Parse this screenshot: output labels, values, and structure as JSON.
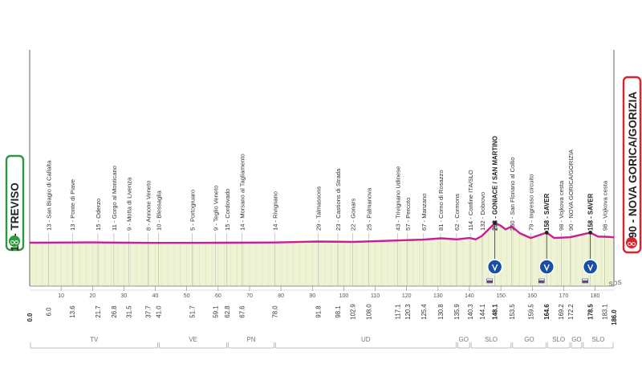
{
  "chart_data": {
    "type": "area",
    "title": "",
    "xlabel": "",
    "ylabel": "",
    "xlim": [
      0,
      186
    ],
    "start": {
      "label": "11 - TREVISO",
      "km": 0,
      "color": "#2a9a3a"
    },
    "finish": {
      "label": "90 - NOVA GORICA/GORIZIA",
      "km": 186,
      "color": "#d7252f"
    },
    "profile": [
      {
        "km": 0,
        "alt": 11
      },
      {
        "km": 20,
        "alt": 15
      },
      {
        "km": 40,
        "alt": 8
      },
      {
        "km": 60,
        "alt": 10
      },
      {
        "km": 78,
        "alt": 14
      },
      {
        "km": 92,
        "alt": 28
      },
      {
        "km": 103,
        "alt": 22
      },
      {
        "km": 115,
        "alt": 40
      },
      {
        "km": 125,
        "alt": 55
      },
      {
        "km": 131,
        "alt": 75
      },
      {
        "km": 136,
        "alt": 60
      },
      {
        "km": 140,
        "alt": 80
      },
      {
        "km": 142,
        "alt": 60
      },
      {
        "km": 144,
        "alt": 110
      },
      {
        "km": 146,
        "alt": 200
      },
      {
        "km": 148.1,
        "alt": 298
      },
      {
        "km": 150,
        "alt": 260
      },
      {
        "km": 151.5,
        "alt": 205
      },
      {
        "km": 153.5,
        "alt": 250
      },
      {
        "km": 156,
        "alt": 150
      },
      {
        "km": 159.5,
        "alt": 79
      },
      {
        "km": 164.6,
        "alt": 158
      },
      {
        "km": 167,
        "alt": 80
      },
      {
        "km": 172,
        "alt": 90
      },
      {
        "km": 175,
        "alt": 120
      },
      {
        "km": 178.5,
        "alt": 158
      },
      {
        "km": 181,
        "alt": 100
      },
      {
        "km": 183.1,
        "alt": 98
      },
      {
        "km": 186,
        "alt": 90
      }
    ],
    "x_ticks": [
      10,
      20,
      30,
      40,
      50,
      60,
      70,
      80,
      90,
      100,
      110,
      120,
      130,
      140,
      150,
      160,
      170,
      180
    ],
    "waypoints": [
      {
        "km": 6.0,
        "label": "13 - San Biagio di Callalta",
        "km_label": "6.0"
      },
      {
        "km": 13.6,
        "label": "13 - Ponte di Piave",
        "km_label": "13.6"
      },
      {
        "km": 21.7,
        "label": "15 - Oderzo",
        "km_label": "21.7"
      },
      {
        "km": 26.8,
        "label": "11 - Gorgo al Monticano",
        "km_label": "26.8"
      },
      {
        "km": 31.5,
        "label": "9 - Motta di Livenza",
        "km_label": "31.5"
      },
      {
        "km": 37.7,
        "label": "8 - Annone Veneto",
        "km_label": "37.7"
      },
      {
        "km": 41.0,
        "label": "10 - Blessaglia",
        "km_label": "41.0"
      },
      {
        "km": 51.7,
        "label": "5 - Portogruaro",
        "km_label": "51.7"
      },
      {
        "km": 59.1,
        "label": "9 - Teglio Veneto",
        "km_label": "59.1"
      },
      {
        "km": 62.8,
        "label": "15 - Cordovado",
        "km_label": "62.8"
      },
      {
        "km": 67.6,
        "label": "14 - Morsano al Tagliamento",
        "km_label": "67.6"
      },
      {
        "km": 78.0,
        "label": "14 - Rivignano",
        "km_label": "78.0"
      },
      {
        "km": 91.8,
        "label": "29 - Talmassons",
        "km_label": "91.8"
      },
      {
        "km": 98.1,
        "label": "23 - Castions di Strada",
        "km_label": "98.1"
      },
      {
        "km": 102.9,
        "label": "22 - Gonars",
        "km_label": "102.9"
      },
      {
        "km": 108.0,
        "label": "25 - Palmanova",
        "km_label": "108.0"
      },
      {
        "km": 117.1,
        "label": "43 - Trivignano Udinese",
        "km_label": "117.1"
      },
      {
        "km": 120.3,
        "label": "57 - Percoto",
        "km_label": "120.3"
      },
      {
        "km": 125.4,
        "label": "67 - Manzano",
        "km_label": "125.4"
      },
      {
        "km": 130.8,
        "label": "81 - Corno di Rosazzo",
        "km_label": "130.8"
      },
      {
        "km": 135.9,
        "label": "62 - Cormons",
        "km_label": "135.9"
      },
      {
        "km": 140.3,
        "label": "114 - Confine ITA/SLO",
        "km_label": "140.3"
      },
      {
        "km": 144.1,
        "label": "132 - Dobrovo",
        "km_label": "144.1"
      },
      {
        "km": 148.1,
        "label": "298 - GONIACE / SAN MARTINO",
        "km_label": "148.1",
        "bold": true
      },
      {
        "km": 153.5,
        "label": "250 - San Floriano al Collio",
        "km_label": "153.5"
      },
      {
        "km": 159.5,
        "label": "79 - Ingresso circuito",
        "km_label": "159.5"
      },
      {
        "km": 164.6,
        "label": "158 - SAVER",
        "km_label": "164.6",
        "bold": true
      },
      {
        "km": 169.2,
        "label": "98 - Vojkova cesta",
        "km_label": "169.2"
      },
      {
        "km": 172.2,
        "label": "90 - NOVA GORICA/GORIZIA",
        "km_label": "172.2"
      },
      {
        "km": 178.5,
        "label": "158 - SAVER",
        "km_label": "178.5",
        "bold": true
      },
      {
        "km": 183.1,
        "label": "98 - Vojkova cesta",
        "km_label": "183.1"
      }
    ],
    "climbs_km": [
      148.1,
      164.6,
      178.5
    ],
    "regions": [
      {
        "label": "TV",
        "from": 0,
        "to": 41
      },
      {
        "label": "VE",
        "from": 41,
        "to": 63
      },
      {
        "label": "PN",
        "from": 63,
        "to": 78
      },
      {
        "label": "UD",
        "from": 78,
        "to": 136
      },
      {
        "label": "GO",
        "from": 136,
        "to": 140.3
      },
      {
        "label": "SLO",
        "from": 140.3,
        "to": 153.5
      },
      {
        "label": "GO",
        "from": 153.5,
        "to": 164.6
      },
      {
        "label": "SLO",
        "from": 164.6,
        "to": 172.2
      },
      {
        "label": "GO",
        "from": 172.2,
        "to": 176
      },
      {
        "label": "SLO",
        "from": 176,
        "to": 186
      }
    ],
    "start_km_label": "0.0",
    "finish_km_label": "186.0",
    "logo": "SDS",
    "colors": {
      "profile": "#c81e96",
      "fill": "#eef3d4",
      "climb": "#1b4fa6",
      "grid": "#cfcfcf"
    }
  }
}
